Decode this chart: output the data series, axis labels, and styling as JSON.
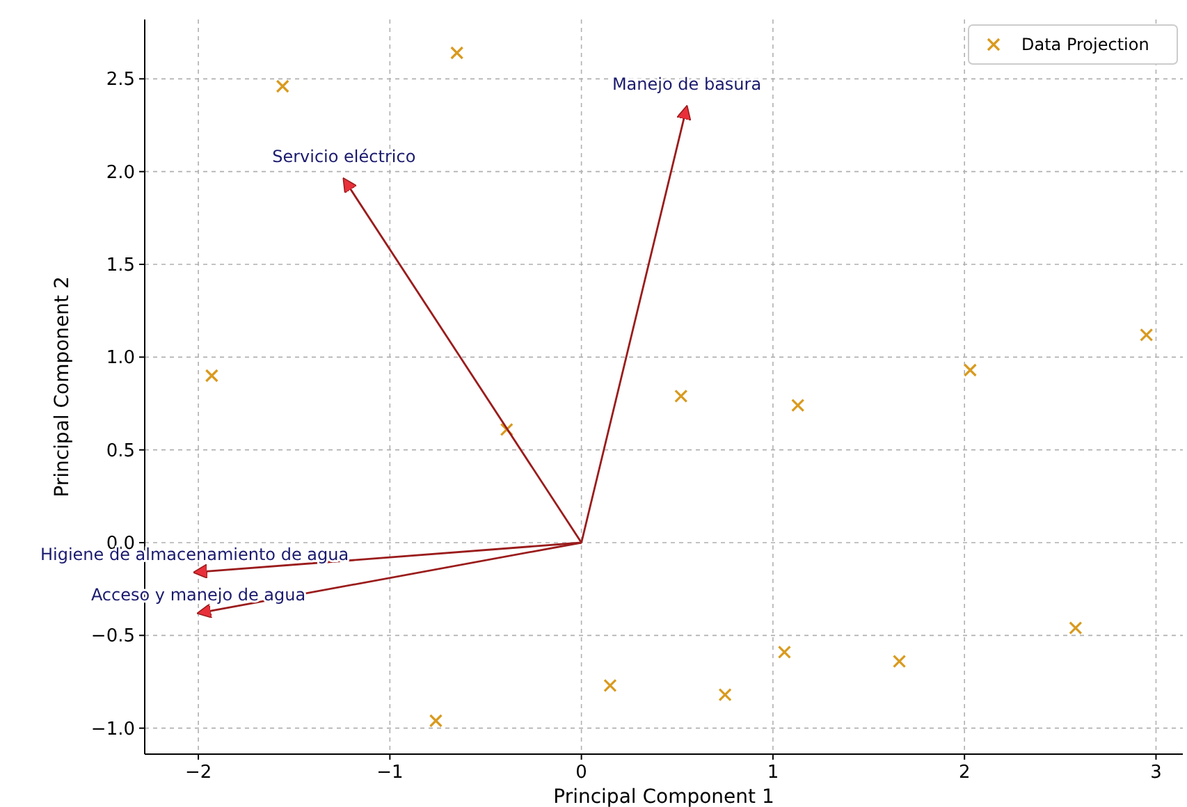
{
  "chart_data": {
    "type": "scatter",
    "xlabel": "Principal Component 1",
    "ylabel": "Principal Component 2",
    "xlim": [
      -2.28,
      3.14
    ],
    "ylim": [
      -1.14,
      2.82
    ],
    "xticks": [
      {
        "value": -2,
        "label": "−2"
      },
      {
        "value": -1,
        "label": "−1"
      },
      0,
      1,
      2,
      3
    ],
    "yticks": [
      {
        "value": -1,
        "label": "−1.0"
      },
      {
        "value": -0.5,
        "label": "−0.5"
      },
      {
        "value": 0,
        "label": "0.0"
      },
      {
        "value": 0.5,
        "label": "0.5"
      },
      {
        "value": 1,
        "label": "1.0"
      },
      {
        "value": 1.5,
        "label": "1.5"
      },
      {
        "value": 2,
        "label": "2.0"
      },
      {
        "value": 2.5,
        "label": "2.5"
      }
    ],
    "grid": true,
    "legend": "top right",
    "series": [
      {
        "name": "Data Projection",
        "marker": "cross",
        "color": "#d99a1e",
        "x": [
          -1.56,
          -0.65,
          -1.93,
          -0.39,
          0.52,
          1.13,
          2.03,
          2.95,
          2.58,
          1.66,
          1.06,
          0.75,
          0.15,
          -0.76
        ],
        "values": [
          2.46,
          2.64,
          0.9,
          0.61,
          0.79,
          0.74,
          0.93,
          1.12,
          -0.46,
          -0.64,
          -0.59,
          -0.82,
          -0.77,
          -0.96
        ]
      },
      {
        "type": "line",
        "marker": "none",
        "color": "#9b1c1c",
        "x": [
          0,
          0.55
        ],
        "values": [
          0,
          2.35
        ]
      },
      {
        "type": "line",
        "marker": "none",
        "color": "#9b1c1c",
        "x": [
          0,
          -1.24
        ],
        "values": [
          0,
          1.96
        ]
      },
      {
        "type": "line",
        "marker": "none",
        "color": "#9b1c1c",
        "x": [
          0,
          -2.02
        ],
        "values": [
          0,
          -0.16
        ]
      },
      {
        "type": "line",
        "marker": "none",
        "color": "#9b1c1c",
        "x": [
          0,
          -2.0
        ],
        "values": [
          0,
          -0.38
        ]
      }
    ],
    "annotations": [
      {
        "text": "Manejo de basura",
        "x": 0.55,
        "y": 2.35
      },
      {
        "text": "Servicio eléctrico",
        "x": -1.24,
        "y": 1.96
      },
      {
        "text": "Higiene de almacenamiento de agua",
        "x": -2.02,
        "y": -0.16
      },
      {
        "text": "Acceso y manejo de agua",
        "x": -2.0,
        "y": -0.38
      }
    ]
  }
}
